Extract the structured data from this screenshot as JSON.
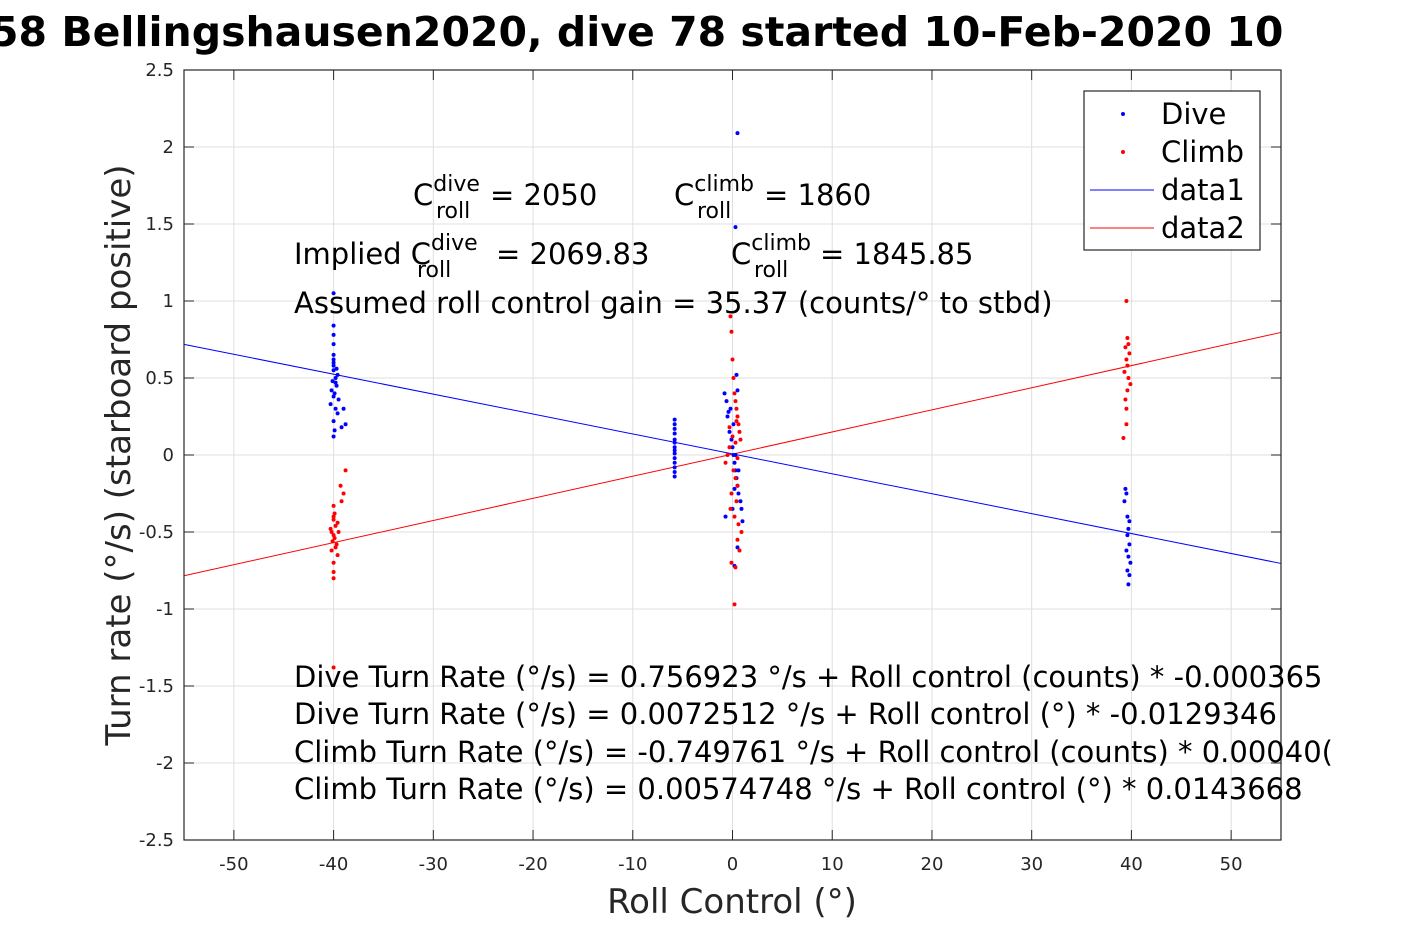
{
  "chart_data": {
    "type": "scatter",
    "title": "58 Bellingshausen2020, dive 78 started 10-Feb-2020 10",
    "xlabel": "Roll Control (°)",
    "ylabel": "Turn rate (°/s) (starboard positive)",
    "xlim": [
      -55,
      55
    ],
    "ylim": [
      -2.5,
      2.5
    ],
    "xticks": [
      -50,
      -40,
      -30,
      -20,
      -10,
      0,
      10,
      20,
      30,
      40,
      50
    ],
    "xtick_labels": [
      "-50",
      "-40",
      "-30",
      "-20",
      "-10",
      "0",
      "10",
      "20",
      "30",
      "40",
      "50"
    ],
    "yticks": [
      -2.5,
      -2,
      -1.5,
      -1,
      -0.5,
      0,
      0.5,
      1,
      1.5,
      2,
      2.5
    ],
    "ytick_labels": [
      "-2.5",
      "-2",
      "-1.5",
      "-1",
      "-0.5",
      "0",
      "0.5",
      "1",
      "1.5",
      "2",
      "2.5"
    ],
    "grid": true,
    "legend_position": "top-right",
    "series": [
      {
        "name": "Dive",
        "kind": "points",
        "color": "#0000ff",
        "x": [
          -40,
          -40,
          -40,
          -40,
          -40,
          -40,
          -40,
          -39.6,
          -39.8,
          -40.1,
          -39.7,
          -40.2,
          -39.9,
          -40,
          -39.5,
          -40.3,
          -39.8,
          -39.6,
          -40,
          -39.9,
          -39,
          -38.8,
          -39.2,
          -40,
          -40,
          -40,
          -39.8,
          -39.7,
          -5.8,
          -5.8,
          -5.8,
          -5.8,
          -5.8,
          -5.8,
          -5.8,
          -5.8,
          -5.8,
          -5.8,
          -5.8,
          -5.8,
          -5.8,
          -5.8,
          -0.8,
          -0.6,
          -0.5,
          -0.3,
          -0.1,
          0,
          0.1,
          0.2,
          0.3,
          0.4,
          0.5,
          0.6,
          0.8,
          -0.7,
          -0.2,
          0.1,
          0.3,
          0.6,
          0.9,
          1.0,
          0.5,
          0.3,
          0.4,
          0.5,
          -0.4,
          0.2,
          0,
          0.2,
          0.5,
          39.4,
          39.5,
          39.3,
          39.6,
          39.8,
          39.7,
          39.6,
          39.8,
          39.5,
          39.7,
          39.9,
          39.6,
          39.8,
          39.7
        ],
        "y": [
          1.05,
          0.84,
          0.78,
          0.72,
          0.65,
          0.6,
          0.55,
          0.52,
          0.5,
          0.48,
          0.45,
          0.42,
          0.4,
          0.38,
          0.36,
          0.33,
          0.3,
          0.27,
          0.22,
          0.16,
          0.3,
          0.2,
          0.18,
          0.12,
          0.62,
          0.58,
          0.47,
          0.56,
          0.23,
          0.2,
          0.17,
          0.14,
          0.1,
          0.08,
          0.05,
          0.03,
          0.01,
          -0.02,
          -0.05,
          -0.08,
          -0.11,
          -0.14,
          0.4,
          0.35,
          0.25,
          0.15,
          0.1,
          0.05,
          0,
          -0.05,
          -0.1,
          -0.15,
          -0.2,
          -0.25,
          -0.3,
          -0.4,
          0.3,
          0.2,
          0.0,
          -0.1,
          -0.35,
          -0.43,
          2.09,
          1.48,
          0.52,
          0.42,
          0.28,
          -0.22,
          -0.35,
          -0.72,
          -0.6,
          -0.22,
          -0.25,
          -0.3,
          -0.4,
          -0.43,
          -0.48,
          -0.52,
          -0.58,
          -0.62,
          -0.66,
          -0.7,
          -0.75,
          -0.78,
          -0.84
        ]
      },
      {
        "name": "Climb",
        "kind": "points",
        "color": "#ff0000",
        "x": [
          -40,
          -40,
          -40,
          -40,
          -39.6,
          -40.2,
          -39.8,
          -39.7,
          -40.1,
          -39.9,
          -40,
          -39.5,
          -40.3,
          -39.8,
          -39.6,
          -40,
          -39.9,
          -39.2,
          -39.0,
          -38.8,
          -39.3,
          -40,
          -40,
          -40.2,
          -0.2,
          -0.1,
          0,
          0.1,
          0.2,
          0.3,
          0.4,
          0.5,
          0.6,
          0.7,
          0.8,
          -0.3,
          -0.5,
          -0.7,
          0.1,
          0.3,
          0.5,
          -0.1,
          0.4,
          -0.2,
          0.2,
          0.6,
          0.9,
          0.5,
          -0.1,
          0.3,
          0.7,
          0.2,
          0.4,
          -0.3,
          0,
          0.3,
          0.5,
          39.5,
          39.6,
          39.7,
          39.4,
          39.8,
          39.5,
          39.6,
          39.3,
          39.7,
          39.9,
          39.6,
          39.4,
          39.5,
          39.2,
          39.5
        ],
        "y": [
          -1.38,
          -0.8,
          -0.76,
          -0.7,
          -0.65,
          -0.62,
          -0.6,
          -0.58,
          -0.56,
          -0.54,
          -0.52,
          -0.5,
          -0.48,
          -0.46,
          -0.44,
          -0.4,
          -0.38,
          -0.3,
          -0.25,
          -0.1,
          -0.2,
          -0.42,
          -0.33,
          -0.5,
          0.9,
          0.8,
          0.62,
          0.5,
          0.4,
          0.35,
          0.3,
          0.25,
          0.2,
          0.15,
          0.1,
          0.05,
          0,
          -0.05,
          -0.1,
          -0.15,
          -0.2,
          -0.25,
          -0.3,
          -0.35,
          -0.4,
          -0.45,
          -0.5,
          -0.55,
          -0.7,
          -0.73,
          -0.62,
          -0.97,
          0.22,
          0.18,
          0.12,
          0.08,
          -0.02,
          1.0,
          0.76,
          0.72,
          0.7,
          0.66,
          0.62,
          0.58,
          0.54,
          0.5,
          0.46,
          0.42,
          0.36,
          0.3,
          0.11,
          0.2
        ]
      },
      {
        "name": "data1",
        "kind": "line",
        "color": "#0000ff",
        "x": [
          -55,
          55
        ],
        "y": [
          0.7186,
          -0.7041
        ]
      },
      {
        "name": "data2",
        "kind": "line",
        "color": "#ff0000",
        "x": [
          -55,
          55
        ],
        "y": [
          -0.7844,
          0.7959
        ]
      }
    ],
    "annotations": {
      "c_roll_dive": {
        "C": "C",
        "sup": "dive",
        "sub": "roll",
        "value": " = 2050"
      },
      "c_roll_climb": {
        "C": "C",
        "sup": "climb",
        "sub": "roll",
        "value": " = 1860"
      },
      "implied_dive": {
        "prefix": "Implied C",
        "sup": "dive",
        "sub": "roll",
        "value": " = 2069.83"
      },
      "implied_climb": {
        "C": "C",
        "sup": "climb",
        "sub": "roll",
        "value": " = 1845.85"
      },
      "gain": "Assumed roll control gain = 35.37 (counts/° to stbd)",
      "eq1": "Dive Turn Rate (°/s) = 0.756923 °/s + Roll control (counts) * -0.000365",
      "eq2": "Dive Turn Rate (°/s) = 0.0072512 °/s + Roll control (°) * -0.0129346",
      "eq3": "Climb Turn Rate (°/s) = -0.749761 °/s + Roll control (counts) * 0.00040(",
      "eq4": "Climb Turn Rate (°/s) = 0.00574748 °/s + Roll control (°) * 0.0143668"
    }
  }
}
